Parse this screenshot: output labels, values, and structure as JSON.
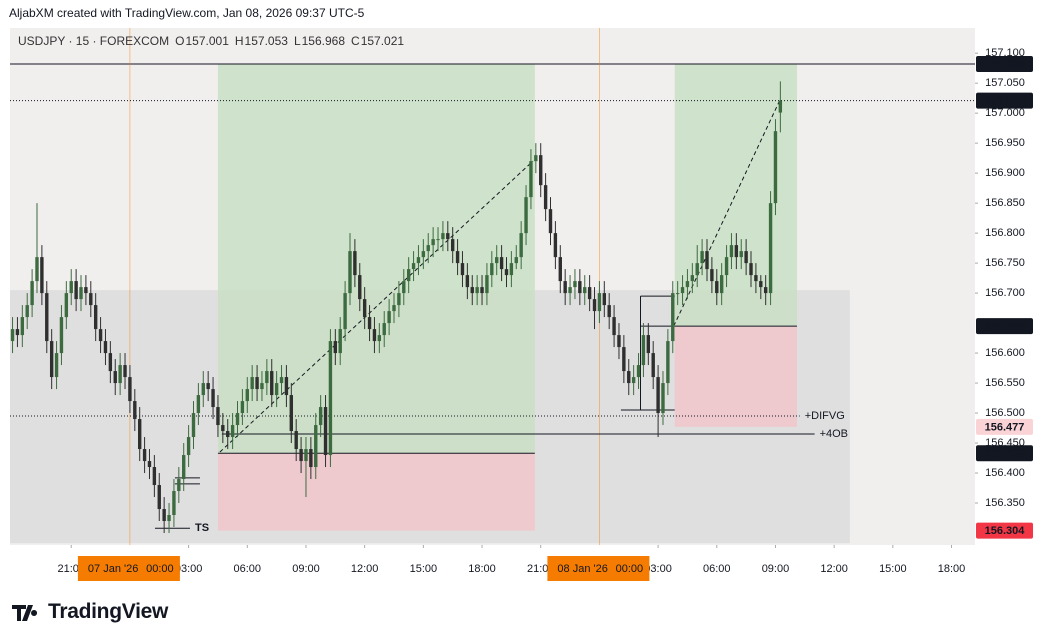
{
  "header": {
    "text": "AljabXM created with TradingView.com, Jan 08, 2026 09:37 UTC-5"
  },
  "footer": {
    "logo": "TradingView"
  },
  "chart_data": {
    "type": "candlestick",
    "symbol": "USDJPY · 15 · FOREXCOM",
    "ohlc_labels": [
      "O",
      "H",
      "L",
      "C"
    ],
    "x": [
      -6,
      -5.75,
      -5.5,
      -5.25,
      -5,
      -4.75,
      -4.5,
      -4.25,
      -4,
      -3.75,
      -3.5,
      -3.25,
      -3,
      -2.75,
      -2.5,
      -2.25,
      -2,
      -1.75,
      -1.5,
      -1.25,
      -1,
      -0.75,
      -0.5,
      -0.25,
      0,
      0.25,
      0.5,
      0.75,
      1,
      1.25,
      1.5,
      1.75,
      2,
      2.25,
      2.5,
      2.75,
      3,
      3.25,
      3.5,
      3.75,
      4,
      4.25,
      4.5,
      4.75,
      5,
      5.25,
      5.5,
      5.75,
      6,
      6.25,
      6.5,
      6.75,
      7,
      7.25,
      7.5,
      7.75,
      8,
      8.25,
      8.5,
      8.75,
      9,
      9.25,
      9.5,
      9.75,
      10,
      10.25,
      10.5,
      10.75,
      11,
      11.25,
      11.5,
      11.75,
      12,
      12.25,
      12.5,
      12.75,
      13,
      13.25,
      13.5,
      13.75,
      14,
      14.25,
      14.5,
      14.75,
      15,
      15.25,
      15.5,
      15.75,
      16,
      16.25,
      16.5,
      16.75,
      17,
      17.25,
      17.5,
      17.75,
      18,
      18.25,
      18.5,
      18.75,
      19,
      19.25,
      19.5,
      19.75,
      20,
      20.25,
      20.5,
      20.75,
      21,
      21.25,
      21.5,
      21.75,
      22,
      22.25,
      22.5,
      22.75,
      23,
      23.25,
      23.5,
      23.75,
      24,
      24.25,
      24.5,
      24.75,
      25,
      25.25,
      25.5,
      25.75,
      26,
      26.25,
      26.5,
      26.75,
      27,
      27.25,
      27.5,
      27.75,
      28,
      28.25,
      28.5,
      28.75,
      29,
      29.25,
      29.5,
      29.75,
      30,
      30.25,
      30.5,
      30.75,
      31,
      31.25,
      31.5,
      31.75,
      32,
      32.25,
      32.5,
      32.75,
      33,
      33.25
    ],
    "open": [
      156.62,
      156.64,
      156.63,
      156.66,
      156.68,
      156.72,
      156.76,
      156.7,
      156.62,
      156.56,
      156.6,
      156.66,
      156.7,
      156.72,
      156.69,
      156.71,
      156.7,
      156.68,
      156.64,
      156.62,
      156.6,
      156.57,
      156.55,
      156.58,
      156.56,
      156.52,
      156.49,
      156.44,
      156.42,
      156.41,
      156.38,
      156.34,
      156.32,
      156.33,
      156.37,
      156.39,
      156.43,
      156.46,
      156.5,
      156.53,
      156.55,
      156.54,
      156.51,
      156.48,
      156.47,
      156.46,
      156.48,
      156.5,
      156.52,
      156.54,
      156.56,
      156.54,
      156.55,
      156.57,
      156.53,
      156.55,
      156.56,
      156.53,
      156.47,
      156.44,
      156.42,
      156.44,
      156.41,
      156.48,
      156.51,
      156.43,
      156.62,
      156.6,
      156.64,
      156.7,
      156.77,
      156.73,
      156.69,
      156.66,
      156.64,
      156.62,
      156.63,
      156.65,
      156.67,
      156.68,
      156.7,
      156.72,
      156.74,
      156.75,
      156.76,
      156.77,
      156.78,
      156.79,
      156.79,
      156.8,
      156.79,
      156.77,
      156.75,
      156.73,
      156.71,
      156.7,
      156.71,
      156.7,
      156.73,
      156.75,
      156.76,
      156.74,
      156.73,
      156.75,
      156.76,
      156.8,
      156.86,
      156.92,
      156.93,
      156.88,
      156.84,
      156.8,
      156.76,
      156.72,
      156.7,
      156.71,
      156.72,
      156.7,
      156.71,
      156.69,
      156.67,
      156.7,
      156.68,
      156.66,
      156.63,
      156.61,
      156.57,
      156.55,
      156.56,
      156.58,
      156.63,
      156.6,
      156.56,
      156.5,
      156.55,
      156.62,
      156.7,
      156.7,
      156.71,
      156.72,
      156.73,
      156.75,
      156.77,
      156.74,
      156.72,
      156.7,
      156.73,
      156.76,
      156.78,
      156.76,
      156.77,
      156.75,
      156.73,
      156.72,
      156.71,
      156.7,
      156.85,
      157.001
    ],
    "high": [
      156.66,
      156.66,
      156.68,
      156.7,
      156.74,
      156.85,
      156.78,
      156.72,
      156.64,
      156.62,
      156.68,
      156.72,
      156.74,
      156.74,
      156.73,
      156.73,
      156.72,
      156.7,
      156.66,
      156.64,
      156.62,
      156.59,
      156.6,
      156.6,
      156.58,
      156.54,
      156.51,
      156.46,
      156.44,
      156.43,
      156.4,
      156.36,
      156.35,
      156.39,
      156.41,
      156.45,
      156.48,
      156.52,
      156.55,
      156.57,
      156.57,
      156.56,
      156.53,
      156.5,
      156.49,
      156.5,
      156.52,
      156.54,
      156.56,
      156.58,
      156.58,
      156.57,
      156.59,
      156.59,
      156.57,
      156.58,
      156.58,
      156.55,
      156.49,
      156.46,
      156.46,
      156.46,
      156.5,
      156.53,
      156.53,
      156.64,
      156.64,
      156.66,
      156.72,
      156.8,
      156.79,
      156.75,
      156.71,
      156.68,
      156.66,
      156.65,
      156.67,
      156.69,
      156.7,
      156.72,
      156.74,
      156.76,
      156.77,
      156.78,
      156.79,
      156.8,
      156.81,
      156.81,
      156.82,
      156.82,
      156.81,
      156.79,
      156.77,
      156.75,
      156.73,
      156.73,
      156.73,
      156.75,
      156.77,
      156.78,
      156.78,
      156.76,
      156.77,
      156.78,
      156.82,
      156.88,
      156.94,
      156.95,
      156.95,
      156.9,
      156.86,
      156.82,
      156.78,
      156.74,
      156.73,
      156.74,
      156.74,
      156.73,
      156.73,
      156.71,
      156.72,
      156.72,
      156.7,
      156.68,
      156.65,
      156.63,
      156.59,
      156.58,
      156.6,
      156.65,
      156.65,
      156.62,
      156.58,
      156.57,
      156.64,
      156.72,
      156.72,
      156.73,
      156.74,
      156.75,
      156.78,
      156.79,
      156.79,
      156.76,
      156.74,
      156.75,
      156.78,
      156.8,
      156.8,
      156.79,
      156.79,
      156.77,
      156.75,
      156.73,
      156.73,
      156.87,
      156.99,
      157.053
    ],
    "low": [
      156.6,
      156.61,
      156.61,
      156.64,
      156.66,
      156.7,
      156.68,
      156.6,
      156.54,
      156.54,
      156.58,
      156.64,
      156.68,
      156.67,
      156.67,
      156.68,
      156.66,
      156.62,
      156.6,
      156.58,
      156.55,
      156.53,
      156.53,
      156.54,
      156.5,
      156.47,
      156.42,
      156.4,
      156.39,
      156.36,
      156.32,
      156.3,
      156.3,
      156.31,
      156.35,
      156.37,
      156.41,
      156.44,
      156.48,
      156.51,
      156.52,
      156.49,
      156.46,
      156.45,
      156.44,
      156.44,
      156.46,
      156.48,
      156.5,
      156.52,
      156.52,
      156.52,
      156.53,
      156.51,
      156.51,
      156.53,
      156.51,
      156.45,
      156.42,
      156.4,
      156.36,
      156.39,
      156.39,
      156.46,
      156.41,
      156.41,
      156.58,
      156.58,
      156.62,
      156.68,
      156.71,
      156.67,
      156.64,
      156.62,
      156.6,
      156.6,
      156.61,
      156.63,
      156.65,
      156.66,
      156.68,
      156.7,
      156.72,
      156.73,
      156.74,
      156.75,
      156.76,
      156.77,
      156.77,
      156.77,
      156.75,
      156.73,
      156.71,
      156.69,
      156.68,
      156.68,
      156.68,
      156.68,
      156.71,
      156.73,
      156.72,
      156.71,
      156.71,
      156.74,
      156.74,
      156.78,
      156.84,
      156.9,
      156.86,
      156.82,
      156.78,
      156.74,
      156.7,
      156.68,
      156.68,
      156.69,
      156.68,
      156.68,
      156.67,
      156.64,
      156.65,
      156.66,
      156.64,
      156.61,
      156.59,
      156.55,
      156.53,
      156.53,
      156.54,
      156.56,
      156.58,
      156.54,
      156.46,
      156.48,
      156.53,
      156.6,
      156.68,
      156.68,
      156.69,
      156.7,
      156.71,
      156.73,
      156.72,
      156.7,
      156.68,
      156.68,
      156.71,
      156.74,
      156.74,
      156.74,
      156.73,
      156.71,
      156.7,
      156.69,
      156.68,
      156.68,
      156.83,
      156.968
    ],
    "close": [
      156.64,
      156.63,
      156.66,
      156.68,
      156.72,
      156.76,
      156.7,
      156.62,
      156.56,
      156.6,
      156.66,
      156.7,
      156.72,
      156.69,
      156.71,
      156.7,
      156.68,
      156.64,
      156.62,
      156.6,
      156.57,
      156.55,
      156.58,
      156.56,
      156.52,
      156.49,
      156.44,
      156.42,
      156.41,
      156.38,
      156.34,
      156.32,
      156.33,
      156.37,
      156.39,
      156.43,
      156.46,
      156.5,
      156.53,
      156.55,
      156.54,
      156.51,
      156.48,
      156.47,
      156.46,
      156.48,
      156.5,
      156.52,
      156.54,
      156.56,
      156.54,
      156.55,
      156.57,
      156.53,
      156.55,
      156.56,
      156.53,
      156.47,
      156.44,
      156.42,
      156.44,
      156.41,
      156.48,
      156.51,
      156.43,
      156.62,
      156.6,
      156.64,
      156.7,
      156.77,
      156.73,
      156.69,
      156.66,
      156.64,
      156.62,
      156.63,
      156.65,
      156.67,
      156.68,
      156.7,
      156.72,
      156.74,
      156.75,
      156.76,
      156.77,
      156.78,
      156.79,
      156.79,
      156.8,
      156.79,
      156.77,
      156.75,
      156.73,
      156.71,
      156.7,
      156.71,
      156.7,
      156.73,
      156.75,
      156.76,
      156.74,
      156.73,
      156.75,
      156.76,
      156.8,
      156.86,
      156.92,
      156.93,
      156.88,
      156.84,
      156.8,
      156.76,
      156.72,
      156.7,
      156.71,
      156.72,
      156.7,
      156.71,
      156.69,
      156.67,
      156.7,
      156.68,
      156.66,
      156.63,
      156.61,
      156.57,
      156.55,
      156.56,
      156.58,
      156.63,
      156.6,
      156.56,
      156.5,
      156.55,
      156.62,
      156.7,
      156.7,
      156.71,
      156.72,
      156.73,
      156.75,
      156.77,
      156.74,
      156.72,
      156.7,
      156.73,
      156.76,
      156.78,
      156.76,
      156.77,
      156.75,
      156.73,
      156.72,
      156.71,
      156.7,
      156.85,
      156.97,
      157.021
    ],
    "up_color": "#3d6b40",
    "down_color": "#2f2f2f",
    "xlim": [
      -6.13,
      43.2
    ],
    "xticks": [
      {
        "value": -3,
        "label": "21:00"
      },
      {
        "value": 3,
        "label": "03:00"
      },
      {
        "value": 6,
        "label": "06:00"
      },
      {
        "value": 9,
        "label": "09:00"
      },
      {
        "value": 12,
        "label": "12:00"
      },
      {
        "value": 15,
        "label": "15:00"
      },
      {
        "value": 18,
        "label": "18:00"
      },
      {
        "value": 21,
        "label": "21:00"
      },
      {
        "value": 27,
        "label": "03:00"
      },
      {
        "value": 30,
        "label": "06:00"
      },
      {
        "value": 33,
        "label": "09:00"
      },
      {
        "value": 36,
        "label": "12:00"
      },
      {
        "value": 39,
        "label": "15:00"
      },
      {
        "value": 42,
        "label": "18:00"
      }
    ],
    "ylim": [
      156.28,
      157.142
    ],
    "yticks": [
      {
        "value": 157.1,
        "label": "157.100"
      },
      {
        "value": 157.05,
        "label": "157.050"
      },
      {
        "value": 157.0,
        "label": "157.000"
      },
      {
        "value": 156.95,
        "label": "156.950"
      },
      {
        "value": 156.9,
        "label": "156.900"
      },
      {
        "value": 156.85,
        "label": "156.850"
      },
      {
        "value": 156.8,
        "label": "156.800"
      },
      {
        "value": 156.75,
        "label": "156.750"
      },
      {
        "value": 156.7,
        "label": "156.700"
      },
      {
        "value": 156.6,
        "label": "156.600"
      },
      {
        "value": 156.55,
        "label": "156.550"
      },
      {
        "value": 156.5,
        "label": "156.500"
      },
      {
        "value": 156.45,
        "label": "156.450"
      },
      {
        "value": 156.4,
        "label": "156.400"
      },
      {
        "value": 156.35,
        "label": "156.350"
      }
    ],
    "session_markers": [
      {
        "x": 0,
        "date": "07 Jan '26",
        "time": "00:00"
      },
      {
        "x": 24,
        "date": "08 Jan '26",
        "time": "00:00"
      }
    ],
    "zone": {
      "x": [
        -6.13,
        36.8
      ],
      "y": [
        156.283,
        156.705
      ]
    },
    "positions": [
      {
        "x": [
          4.5,
          20.7
        ],
        "target": 157.082,
        "entry": 156.433,
        "stop": 156.304
      },
      {
        "x": [
          27.85,
          34.1
        ],
        "target": 157.082,
        "entry": 156.645,
        "stop": 156.477
      }
    ],
    "levels": [
      {
        "label": "+DIFVG",
        "y": 156.495,
        "x": [
          -6.13,
          34.24
        ],
        "style": "dotted"
      },
      {
        "label": "+4OB",
        "y": 156.465,
        "x": [
          4.7,
          35.0
        ],
        "style": "solid"
      },
      {
        "label": "TS",
        "y": 156.308,
        "x": [
          1.28,
          3.07
        ],
        "style": "solid"
      }
    ],
    "segments": [
      {
        "x": [
          2.3,
          3.58
        ],
        "y": [
          156.392,
          156.392
        ]
      },
      {
        "x": [
          2.3,
          3.58
        ],
        "y": [
          156.382,
          156.382
        ]
      },
      {
        "x": [
          26.1,
          27.85
        ],
        "y": [
          156.695,
          156.695
        ]
      },
      {
        "x": [
          26.1,
          26.1
        ],
        "y": [
          156.695,
          156.505
        ]
      },
      {
        "x": [
          25.1,
          27.85
        ],
        "y": [
          156.505,
          156.505
        ]
      },
      {
        "x": [
          26.1,
          27.85
        ],
        "y": [
          156.645,
          156.645
        ]
      }
    ],
    "trend_lines": [
      {
        "x": [
          4.6,
          20.6
        ],
        "y": [
          156.435,
          156.92
        ]
      },
      {
        "x": [
          27.8,
          33.2
        ],
        "y": [
          156.645,
          157.02
        ]
      }
    ],
    "colors": {
      "label_bg": "#131722",
      "stop_bg": "#f23645",
      "stop_soft_bg": "#f9d3d6",
      "session": "#f57c00",
      "target_fill": "#c9dfc4",
      "stop_fill": "#efc8cc",
      "zone_fill": "#d9d9d9",
      "plot_bg": "#f1eeee"
    }
  }
}
